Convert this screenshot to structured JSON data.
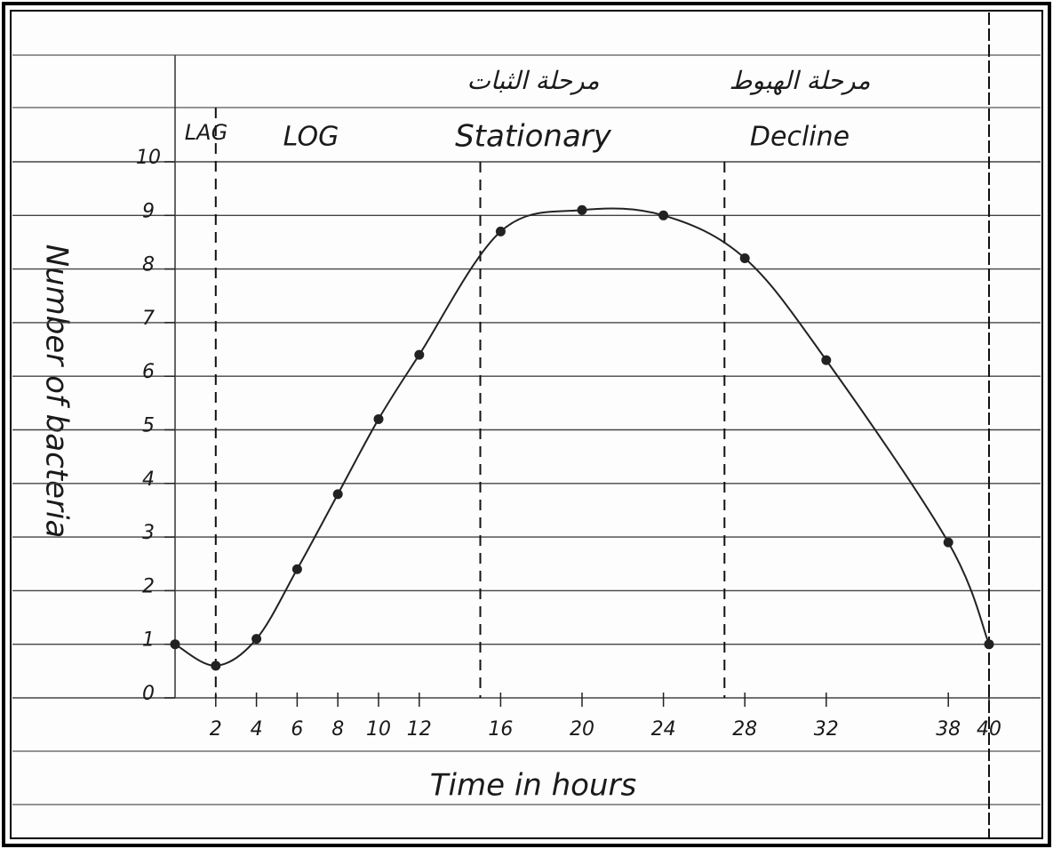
{
  "chart_data": {
    "type": "line",
    "x_label": "Time in hours",
    "y_label": "Number of bacteria",
    "annotations": [
      "LAG",
      "LOG",
      "Stationary",
      "Decline",
      "مرحلة الثبات",
      "مرحلة الهبوط"
    ],
    "phase_boundaries": [
      2,
      15,
      27,
      40
    ],
    "x": [
      0,
      2,
      4,
      6,
      8,
      10,
      12,
      16,
      20,
      24,
      28,
      32,
      38,
      40
    ],
    "series": [
      {
        "color": "#222222",
        "values": [
          1.0,
          0.6,
          1.1,
          2.4,
          3.8,
          5.2,
          6.4,
          8.7,
          9.1,
          9.0,
          8.2,
          6.3,
          2.9,
          1.0
        ]
      }
    ],
    "xlim": [
      0,
      40
    ],
    "xticks": [
      2,
      4,
      6,
      8,
      10,
      12,
      16,
      20,
      24,
      28,
      32,
      38,
      40
    ],
    "ylim": [
      0,
      10
    ],
    "yticks": [
      0,
      1,
      2,
      3,
      4,
      5,
      6,
      7,
      8,
      9,
      10
    ],
    "grid": true
  }
}
